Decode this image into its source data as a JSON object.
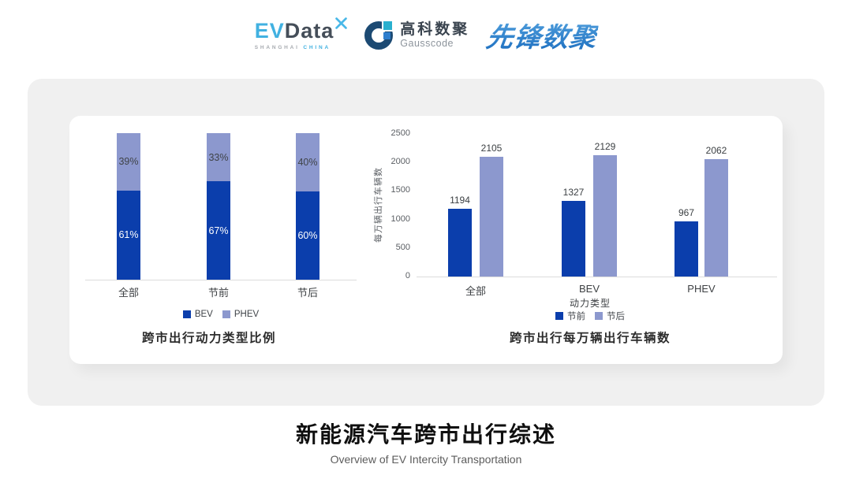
{
  "header": {
    "evdata": {
      "ev": "EV",
      "data": "Data",
      "sub_left": "SHANGHAI",
      "sub_right": "CHINA"
    },
    "gausscode": {
      "cn": "高科数聚",
      "en": "Gausscode"
    },
    "pioneer": {
      "name": "先锋数聚"
    }
  },
  "footer": {
    "title": "新能源汽车跨市出行综述",
    "subtitle": "Overview of EV Intercity Transportation"
  },
  "colors": {
    "series_dark_blue": "#0B3EAC",
    "series_light_blue": "#8C98CE",
    "card_background": "#F0F0F0",
    "evdata_blue": "#41B1E1",
    "evdata_dark": "#454E59",
    "gausscode_navy": "#1C4A73",
    "gausscode_teal": "#29B0CF",
    "pioneer_blue": "#2E86D0"
  },
  "chart_data": [
    {
      "type": "bar",
      "subtype": "stacked-100percent",
      "title": "跨市出行动力类型比例",
      "categories": [
        "全部",
        "节前",
        "节后"
      ],
      "series": [
        {
          "name": "BEV",
          "color": "#0B3EAC",
          "values": [
            61,
            67,
            60
          ]
        },
        {
          "name": "PHEV",
          "color": "#8C98CE",
          "values": [
            39,
            33,
            40
          ]
        }
      ],
      "value_unit": "%",
      "legend_position": "bottom",
      "grid": false
    },
    {
      "type": "bar",
      "subtype": "grouped",
      "title": "跨市出行每万辆出行车辆数",
      "categories": [
        "全部",
        "BEV",
        "PHEV"
      ],
      "xlabel": "动力类型",
      "ylabel": "每万辆出行车辆数",
      "ylim": [
        0,
        2500
      ],
      "yticks": [
        0,
        500,
        1000,
        1500,
        2000,
        2500
      ],
      "series": [
        {
          "name": "节前",
          "color": "#0B3EAC",
          "values": [
            1194,
            1327,
            967
          ]
        },
        {
          "name": "节后",
          "color": "#8C98CE",
          "values": [
            2105,
            2129,
            2062
          ]
        }
      ],
      "legend_position": "bottom",
      "grid": false
    }
  ]
}
